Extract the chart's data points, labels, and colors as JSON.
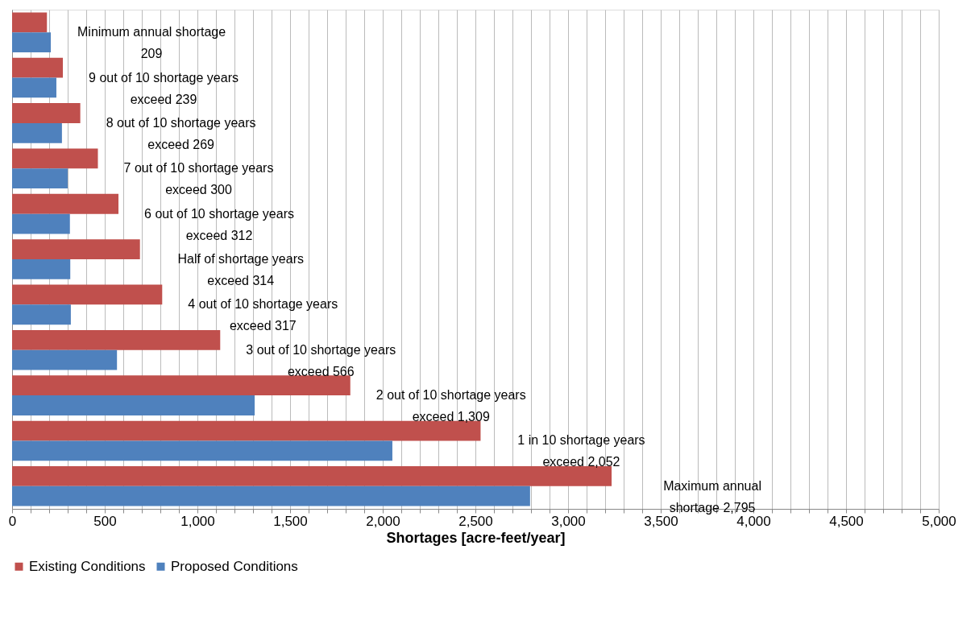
{
  "chart_data": {
    "type": "bar",
    "orientation": "horizontal",
    "xlabel": "Shortages [acre-feet/year]",
    "categories": [
      null,
      null,
      null,
      null,
      null,
      null,
      null,
      null,
      null,
      null,
      null
    ],
    "series": [
      {
        "name": "Existing Conditions",
        "color": "#c0504d",
        "values": [
          188,
          274,
          368,
          463,
          574,
          690,
          810,
          1123,
          1825,
          2528,
          3235
        ]
      },
      {
        "name": "Proposed Conditions",
        "color": "#4f81bd",
        "values": [
          209,
          239,
          269,
          300,
          312,
          314,
          317,
          566,
          1309,
          2052,
          2795
        ]
      }
    ],
    "xlim": [
      0,
      5000
    ],
    "xticks": [
      0,
      {
        "value": 100,
        "label": null
      },
      {
        "value": 200,
        "label": null
      },
      {
        "value": 300,
        "label": null
      },
      {
        "value": 400,
        "label": null
      },
      500,
      {
        "value": 600,
        "label": null
      },
      {
        "value": 700,
        "label": null
      },
      {
        "value": 800,
        "label": null
      },
      {
        "value": 900,
        "label": null
      },
      {
        "value": 1000,
        "label": "1,000"
      },
      {
        "value": 1100,
        "label": null
      },
      {
        "value": 1200,
        "label": null
      },
      {
        "value": 1300,
        "label": null
      },
      {
        "value": 1400,
        "label": null
      },
      {
        "value": 1500,
        "label": "1,500"
      },
      {
        "value": 1600,
        "label": null
      },
      {
        "value": 1700,
        "label": null
      },
      {
        "value": 1800,
        "label": null
      },
      {
        "value": 1900,
        "label": null
      },
      {
        "value": 2000,
        "label": "2,000"
      },
      {
        "value": 2100,
        "label": null
      },
      {
        "value": 2200,
        "label": null
      },
      {
        "value": 2300,
        "label": null
      },
      {
        "value": 2400,
        "label": null
      },
      {
        "value": 2500,
        "label": "2,500"
      },
      {
        "value": 2600,
        "label": null
      },
      {
        "value": 2700,
        "label": null
      },
      {
        "value": 2800,
        "label": null
      },
      {
        "value": 2900,
        "label": null
      },
      {
        "value": 3000,
        "label": "3,000"
      },
      {
        "value": 3100,
        "label": null
      },
      {
        "value": 3200,
        "label": null
      },
      {
        "value": 3300,
        "label": null
      },
      {
        "value": 3400,
        "label": null
      },
      {
        "value": 3500,
        "label": "3,500"
      },
      {
        "value": 3600,
        "label": null
      },
      {
        "value": 3700,
        "label": null
      },
      {
        "value": 3800,
        "label": null
      },
      {
        "value": 3900,
        "label": null
      },
      {
        "value": 4000,
        "label": "4,000"
      },
      {
        "value": 4100,
        "label": null
      },
      {
        "value": 4200,
        "label": null
      },
      {
        "value": 4300,
        "label": null
      },
      {
        "value": 4400,
        "label": null
      },
      {
        "value": 4500,
        "label": "4,500"
      },
      {
        "value": 4600,
        "label": null
      },
      {
        "value": 4700,
        "label": null
      },
      {
        "value": 4800,
        "label": null
      },
      {
        "value": 4900,
        "label": null
      },
      {
        "value": 5000,
        "label": "5,000"
      }
    ],
    "grid": "x",
    "legend": "bottom",
    "annotations": [
      "Minimum annual shortage\n209",
      "9 out of 10 shortage years\nexceed  239",
      "8 out of 10 shortage years\nexceed  269",
      "7 out of 10 shortage years\nexceed  300",
      "6 out of 10 shortage years\nexceed  312",
      "Half of shortage years\nexceed  314",
      "4 out of 10 shortage years\nexceed  317",
      "3 out of 10 shortage years\nexceed  566",
      "2 out of 10 shortage years\nexceed  1,309",
      "1 in 10 shortage years\nexceed  2,052",
      "Maximum annual\nshortage  2,795"
    ]
  }
}
